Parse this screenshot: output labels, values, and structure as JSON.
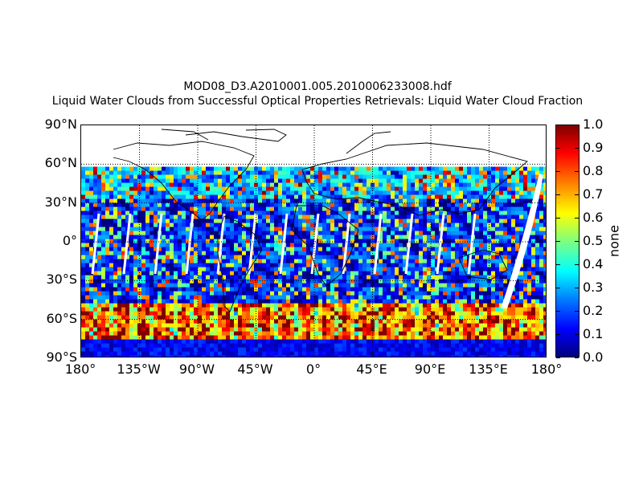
{
  "figure": {
    "title_line1": "MOD08_D3.A2010001.005.2010006233008.hdf",
    "title_line2": "Liquid Water Clouds from Successful Optical Properties Retrievals:  Liquid Water Cloud Fraction"
  },
  "map": {
    "projection": "equirectangular",
    "data_coverage": {
      "lat_max": 58
    },
    "lat_labels": [
      "90°N",
      "60°N",
      "30°N",
      "0°",
      "30°S",
      "60°S",
      "90°S"
    ],
    "lat_values": [
      90,
      60,
      30,
      0,
      -30,
      -60,
      -90
    ],
    "lon_labels": [
      "180°",
      "135°W",
      "90°W",
      "45°W",
      "0°",
      "45°E",
      "90°E",
      "135°E",
      "180°"
    ],
    "lon_values": [
      -180,
      -135,
      -90,
      -45,
      0,
      45,
      90,
      135,
      180
    ],
    "gridlines": "dotted",
    "colormap": "jet",
    "missing_color": "#ffffff"
  },
  "colorbar": {
    "label": "none",
    "range": [
      0.0,
      1.0
    ],
    "tick_labels": [
      "0.0",
      "0.1",
      "0.2",
      "0.3",
      "0.4",
      "0.5",
      "0.6",
      "0.7",
      "0.8",
      "0.9",
      "1.0"
    ],
    "tick_values": [
      0.0,
      0.1,
      0.2,
      0.3,
      0.4,
      0.5,
      0.6,
      0.7,
      0.8,
      0.9,
      1.0
    ]
  }
}
